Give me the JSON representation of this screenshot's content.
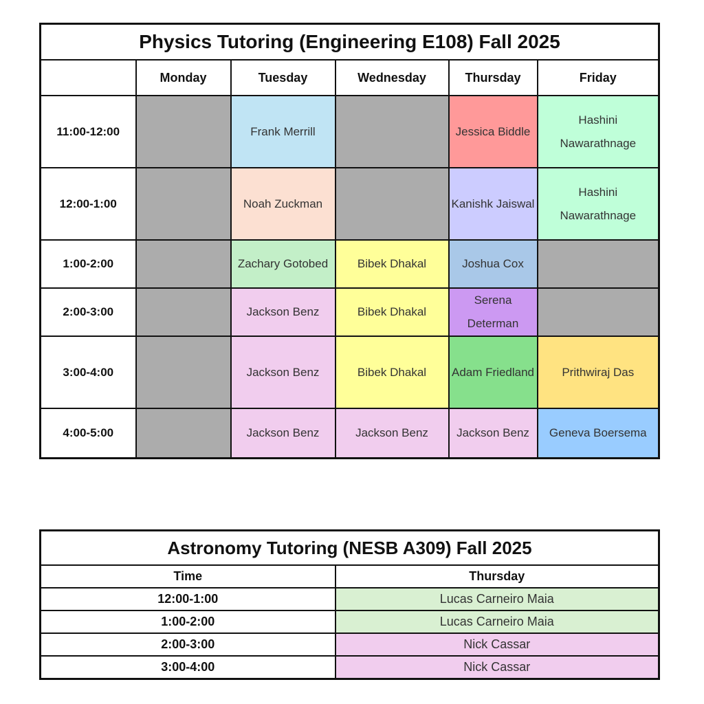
{
  "physics": {
    "title": "Physics Tutoring (Engineering E108) Fall 2025",
    "days": [
      "Monday",
      "Tuesday",
      "Wednesday",
      "Thursday",
      "Friday"
    ],
    "rows": [
      {
        "time": "11:00-12:00",
        "cells": [
          {
            "name": "",
            "color": "#acacac"
          },
          {
            "name": "Frank Merrill",
            "color": "#c0e4f4"
          },
          {
            "name": "",
            "color": "#acacac"
          },
          {
            "name": "Jessica Biddle",
            "color": "#ff9999"
          },
          {
            "name": "Hashini Nawarathnage",
            "color": "#bfffd9"
          }
        ]
      },
      {
        "time": "12:00-1:00",
        "cells": [
          {
            "name": "",
            "color": "#acacac"
          },
          {
            "name": "Noah Zuckman",
            "color": "#fce0d2"
          },
          {
            "name": "",
            "color": "#acacac"
          },
          {
            "name": "Kanishk Jaiswal",
            "color": "#ccccff"
          },
          {
            "name": "Hashini Nawarathnage",
            "color": "#bfffd9"
          }
        ]
      },
      {
        "time": "1:00-2:00",
        "cells": [
          {
            "name": "",
            "color": "#acacac"
          },
          {
            "name": "Zachary Gotobed",
            "color": "#c3efc8"
          },
          {
            "name": "Bibek Dhakal",
            "color": "#ffff99"
          },
          {
            "name": "Joshua Cox",
            "color": "#a9c8e8"
          },
          {
            "name": "",
            "color": "#acacac"
          }
        ]
      },
      {
        "time": "2:00-3:00",
        "cells": [
          {
            "name": "",
            "color": "#acacac"
          },
          {
            "name": "Jackson Benz",
            "color": "#f1cdee"
          },
          {
            "name": "Bibek Dhakal",
            "color": "#ffff99"
          },
          {
            "name": "Serena Determan",
            "color": "#cc99f2"
          },
          {
            "name": "",
            "color": "#acacac"
          }
        ]
      },
      {
        "time": "3:00-4:00",
        "cells": [
          {
            "name": "",
            "color": "#acacac"
          },
          {
            "name": "Jackson Benz",
            "color": "#f1cdee"
          },
          {
            "name": "Bibek Dhakal",
            "color": "#ffff99"
          },
          {
            "name": "Adam Friedland",
            "color": "#86e08c"
          },
          {
            "name": "Prithwiraj Das",
            "color": "#ffe381"
          }
        ]
      },
      {
        "time": "4:00-5:00",
        "cells": [
          {
            "name": "",
            "color": "#acacac"
          },
          {
            "name": "Jackson Benz",
            "color": "#f1cdee"
          },
          {
            "name": "Jackson Benz",
            "color": "#f1cdee"
          },
          {
            "name": "Jackson Benz",
            "color": "#f1cdee"
          },
          {
            "name": "Geneva Boersema",
            "color": "#99ccff"
          }
        ]
      }
    ]
  },
  "astronomy": {
    "title": "Astronomy Tutoring (NESB A309) Fall 2025",
    "headers": [
      "Time",
      "Thursday"
    ],
    "rows": [
      {
        "time": "12:00-1:00",
        "name": "Lucas Carneiro Maia",
        "color": "#d9f0d2"
      },
      {
        "time": "1:00-2:00",
        "name": "Lucas Carneiro Maia",
        "color": "#d9f0d2"
      },
      {
        "time": "2:00-3:00",
        "name": "Nick Cassar",
        "color": "#f1cdee"
      },
      {
        "time": "3:00-4:00",
        "name": "Nick Cassar",
        "color": "#f1cdee"
      }
    ]
  }
}
